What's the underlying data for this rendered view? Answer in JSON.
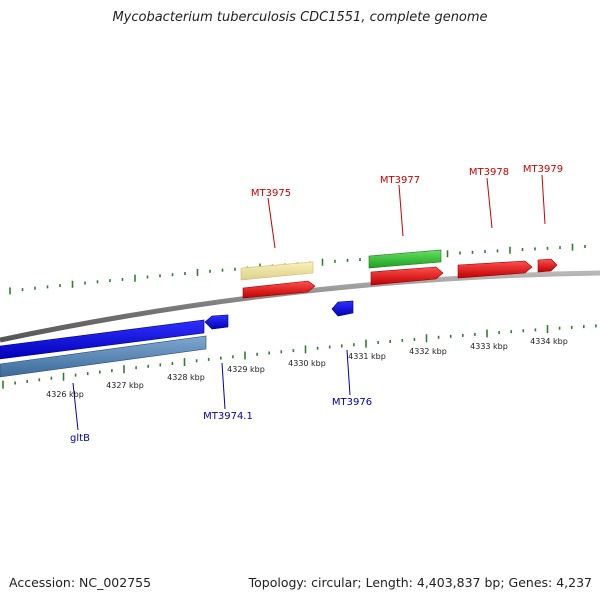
{
  "title": "Mycobacterium tuberculosis CDC1551, complete genome",
  "footer": {
    "accession": "Accession: NC_002755",
    "summary": "Topology: circular; Length: 4,403,837 bp; Genes: 4,237"
  },
  "colors": {
    "forward_label": "#cc0000",
    "reverse_label": "#0000aa",
    "tick": "#2f7f2f",
    "backbone": "#888888"
  },
  "scale_labels": [
    "4326 kbp",
    "4327 kbp",
    "4328 kbp",
    "4329 kbp",
    "4330 kbp",
    "4331 kbp",
    "4332 kbp",
    "4333 kbp",
    "4334 kbp"
  ],
  "genes": [
    {
      "name": "MT3975",
      "color": "#cc0000"
    },
    {
      "name": "MT3977",
      "color": "#cc0000"
    },
    {
      "name": "MT3978",
      "color": "#cc0000"
    },
    {
      "name": "MT3979",
      "color": "#cc0000"
    },
    {
      "name": "MT3974.1",
      "color": "#0000aa"
    },
    {
      "name": "MT3976",
      "color": "#0000aa"
    },
    {
      "name": "gltB",
      "color": "#0000aa"
    }
  ]
}
